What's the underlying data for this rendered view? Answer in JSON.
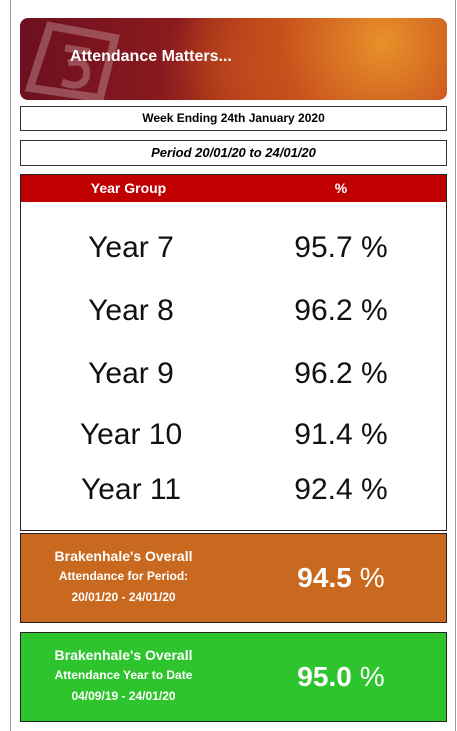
{
  "header": {
    "title": "Attendance Matters...",
    "week": "Week Ending 24th January 2020",
    "period": "Period 20/01/20 to 24/01/20"
  },
  "table": {
    "columns": [
      "Year Group",
      "%"
    ],
    "rows": [
      [
        "Year 7",
        "95.7 %"
      ],
      [
        "Year 8",
        "96.2 %"
      ],
      [
        "Year 9",
        "96.2 %"
      ],
      [
        "Year 10",
        "91.4 %"
      ],
      [
        "Year 11",
        "92.4 %"
      ]
    ]
  },
  "overall_period": {
    "lines": [
      "Brakenhale's Overall",
      "Attendance for Period:",
      "20/01/20 - 24/01/20"
    ],
    "value": "94.5",
    "unit": "%"
  },
  "overall_year": {
    "lines": [
      "Brakenhale's Overall",
      "Attendance Year to Date",
      "04/09/19 - 24/01/20"
    ],
    "value": "95.0",
    "unit": "%"
  }
}
